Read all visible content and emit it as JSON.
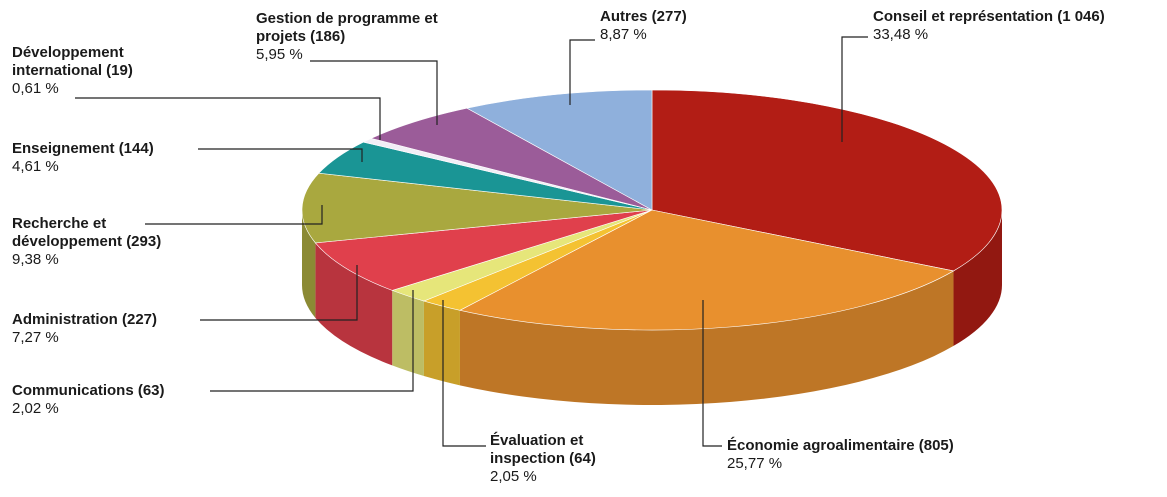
{
  "chart_data": {
    "type": "pie",
    "categories": [
      "Conseil et représentation (1 046)",
      "Économie agroalimentaire (805)",
      "Évaluation et inspection (64)",
      "Communications (63)",
      "Administration (227)",
      "Recherche et développement (293)",
      "Enseignement (144)",
      "Développement international (19)",
      "Gestion de programme et projets (186)",
      "Autres (277)"
    ],
    "values": [
      33.48,
      25.77,
      2.05,
      2.02,
      7.27,
      9.38,
      4.61,
      0.61,
      5.95,
      8.87
    ],
    "value_labels": [
      "33,48 %",
      "25,77 %",
      "2,05 %",
      "2,02 %",
      "7,27 %",
      "9,38 %",
      "4,61 %",
      "0,61 %",
      "5,95 %",
      "8,87 %"
    ],
    "colors": [
      "#b21d15",
      "#e8902e",
      "#f4c232",
      "#e6e67a",
      "#e0404c",
      "#a9a83f",
      "#1a9595",
      "#f2eef6",
      "#9b5c99",
      "#8fb0dc"
    ]
  }
}
